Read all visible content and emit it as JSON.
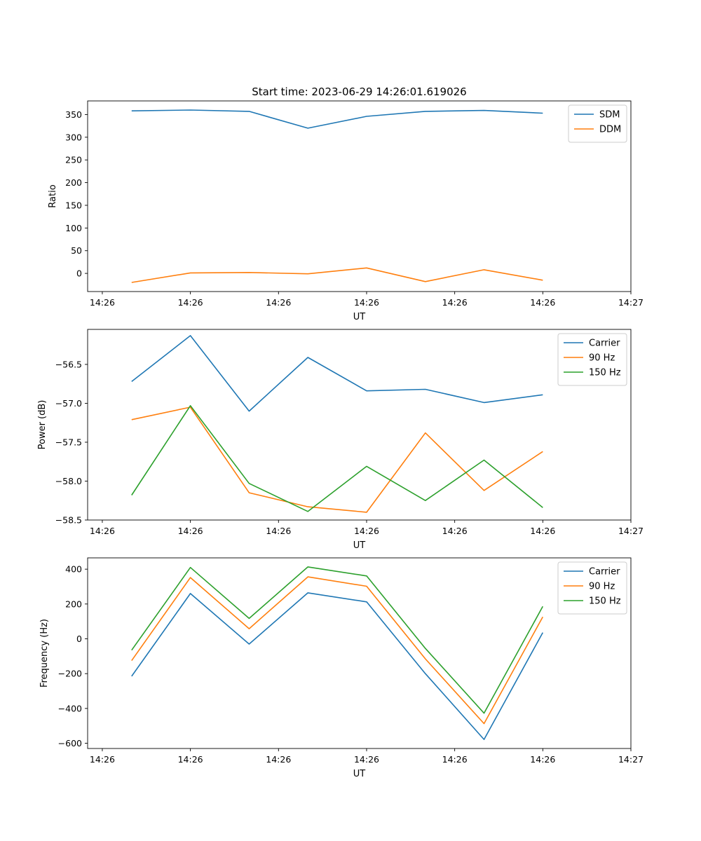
{
  "figure": {
    "title": "Start time: 2023-06-29 14:26:01.619026"
  },
  "chart_data": [
    {
      "type": "line",
      "xlabel": "UT",
      "ylabel": "Ratio",
      "x": [
        0.3,
        0.4,
        0.5,
        0.6,
        0.7,
        0.8,
        0.9,
        1.0
      ],
      "xlim": [
        0.225,
        1.15
      ],
      "xticks": [
        0.25,
        0.4,
        0.55,
        0.7,
        0.85,
        1.0,
        1.15
      ],
      "xtick_labels": [
        "14:26",
        "14:26",
        "14:26",
        "14:26",
        "14:26",
        "14:26",
        "14:27"
      ],
      "ylim": [
        -40,
        380
      ],
      "yticks": [
        0,
        50,
        100,
        150,
        200,
        250,
        300,
        350
      ],
      "ytick_labels": [
        "0",
        "50",
        "100",
        "150",
        "200",
        "250",
        "300",
        "350"
      ],
      "legend_position": "top-right",
      "grid": false,
      "series": [
        {
          "name": "SDM",
          "color": "#1f77b4",
          "values": [
            358,
            360,
            357,
            320,
            346,
            357,
            359,
            353
          ]
        },
        {
          "name": "DDM",
          "color": "#ff7f0e",
          "values": [
            -20,
            1,
            2,
            -1,
            12,
            -18,
            8,
            -15
          ]
        }
      ]
    },
    {
      "type": "line",
      "xlabel": "UT",
      "ylabel": "Power (dB)",
      "x": [
        0.3,
        0.4,
        0.5,
        0.6,
        0.7,
        0.8,
        0.9,
        1.0
      ],
      "xlim": [
        0.225,
        1.15
      ],
      "xticks": [
        0.25,
        0.4,
        0.55,
        0.7,
        0.85,
        1.0,
        1.15
      ],
      "xtick_labels": [
        "14:26",
        "14:26",
        "14:26",
        "14:26",
        "14:26",
        "14:26",
        "14:27"
      ],
      "ylim": [
        -58.5,
        -56.05
      ],
      "yticks": [
        -58.5,
        -58.0,
        -57.5,
        -57.0,
        -56.5
      ],
      "ytick_labels": [
        "−58.5",
        "−58.0",
        "−57.5",
        "−57.0",
        "−56.5"
      ],
      "legend_position": "top-right",
      "grid": false,
      "series": [
        {
          "name": "Carrier",
          "color": "#1f77b4",
          "values": [
            -56.72,
            -56.13,
            -57.1,
            -56.41,
            -56.84,
            -56.82,
            -56.99,
            -56.89
          ]
        },
        {
          "name": "90 Hz",
          "color": "#ff7f0e",
          "values": [
            -57.21,
            -57.05,
            -58.15,
            -58.33,
            -58.4,
            -57.38,
            -58.12,
            -57.62
          ]
        },
        {
          "name": "150 Hz",
          "color": "#2ca02c",
          "values": [
            -58.18,
            -57.03,
            -58.03,
            -58.39,
            -57.81,
            -58.25,
            -57.73,
            -58.34
          ]
        }
      ]
    },
    {
      "type": "line",
      "xlabel": "UT",
      "ylabel": "Frequency (Hz)",
      "x": [
        0.3,
        0.4,
        0.5,
        0.6,
        0.7,
        0.8,
        0.9,
        1.0
      ],
      "xlim": [
        0.225,
        1.15
      ],
      "xticks": [
        0.25,
        0.4,
        0.55,
        0.7,
        0.85,
        1.0,
        1.15
      ],
      "xtick_labels": [
        "14:26",
        "14:26",
        "14:26",
        "14:26",
        "14:26",
        "14:26",
        "14:27"
      ],
      "ylim": [
        -630,
        465
      ],
      "yticks": [
        -600,
        -400,
        -200,
        0,
        200,
        400
      ],
      "ytick_labels": [
        "−600",
        "−400",
        "−200",
        "0",
        "200",
        "400"
      ],
      "legend_position": "top-right",
      "grid": false,
      "series": [
        {
          "name": "Carrier",
          "color": "#1f77b4",
          "values": [
            -215,
            260,
            -30,
            264,
            212,
            -200,
            -578,
            36
          ]
        },
        {
          "name": "90 Hz",
          "color": "#ff7f0e",
          "values": [
            -125,
            352,
            58,
            356,
            302,
            -115,
            -487,
            126
          ]
        },
        {
          "name": "150 Hz",
          "color": "#2ca02c",
          "values": [
            -65,
            410,
            117,
            413,
            361,
            -55,
            -427,
            186
          ]
        }
      ]
    }
  ]
}
